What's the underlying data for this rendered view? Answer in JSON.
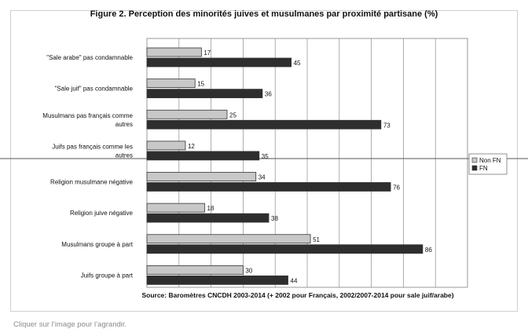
{
  "caption": "Cliquer sur l’image pour l’agrandir.",
  "chart_data": {
    "type": "bar",
    "orientation": "horizontal",
    "title": "Figure 2. Perception des minorités juives et musulmanes par proximité partisane (%)",
    "source": "Source: Baromètres CNCDH 2003-2014 (+ 2002 pour Français, 2002/2007-2014 pour sale juif/arabe)",
    "categories": [
      "\"Sale arabe\" pas condamnable",
      "\"Sale juif\" pas condamnable",
      "Musulmans pas français comme autres",
      "Juifs pas français comme les autres",
      "Religion musulmane négative",
      "Religion juive négative",
      "Musulmans groupe à part",
      "Juifs groupe à part"
    ],
    "series": [
      {
        "name": "Non FN",
        "color": "#c8c8c8",
        "values": [
          17,
          15,
          25,
          12,
          34,
          18,
          51,
          30
        ]
      },
      {
        "name": "FN",
        "color": "#2e2e2e",
        "values": [
          45,
          36,
          73,
          35,
          76,
          38,
          86,
          44
        ]
      }
    ],
    "xlim": [
      0,
      100
    ],
    "grid": true,
    "legend": "right"
  }
}
